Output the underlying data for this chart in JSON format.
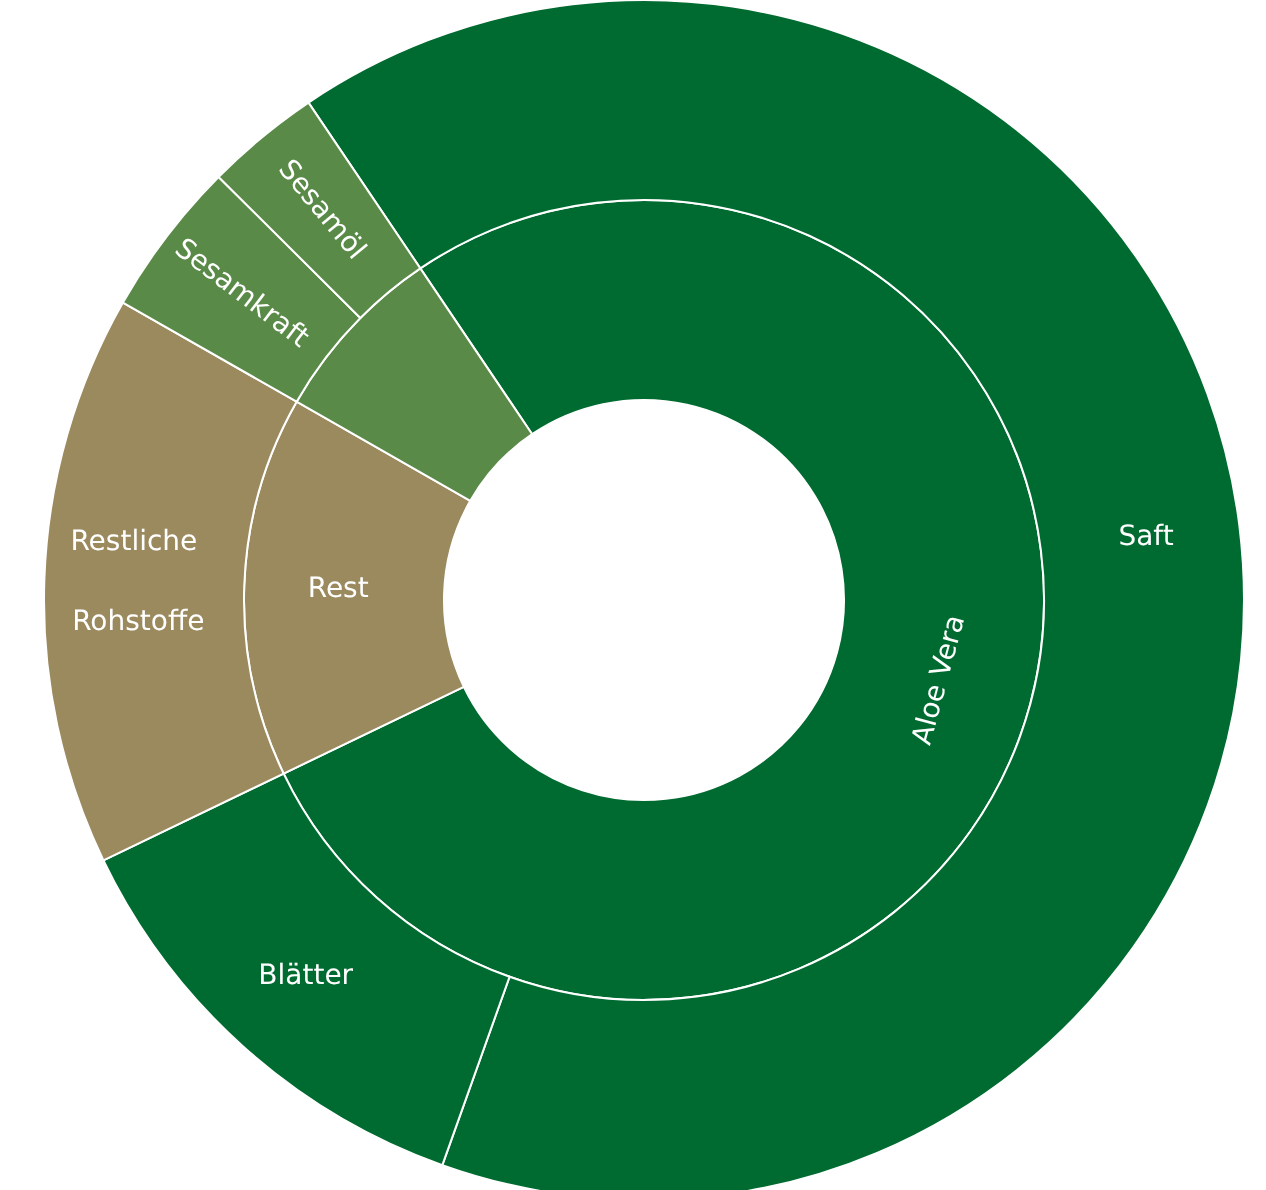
{
  "chart_data": [
    {
      "type": "donut",
      "categories": [
        "Aloe Vera",
        "Rest",
        null
      ],
      "values": [
        77.3,
        15.4,
        7.3
      ],
      "colors": [
        "#006b30",
        "#9c8a5f",
        "#5a8a47"
      ]
    },
    {
      "type": "donut",
      "categories": [
        "Saft",
        "Blätter",
        "Restliche Rohstoffe",
        "Sesamkraft",
        "Sesamöl"
      ],
      "values": [
        64.9,
        12.4,
        15.4,
        4.2,
        3.1
      ],
      "colors": [
        "#006b30",
        "#006b30",
        "#9c8a5f",
        "#5a8a47",
        "#5a8a47"
      ]
    }
  ]
}
